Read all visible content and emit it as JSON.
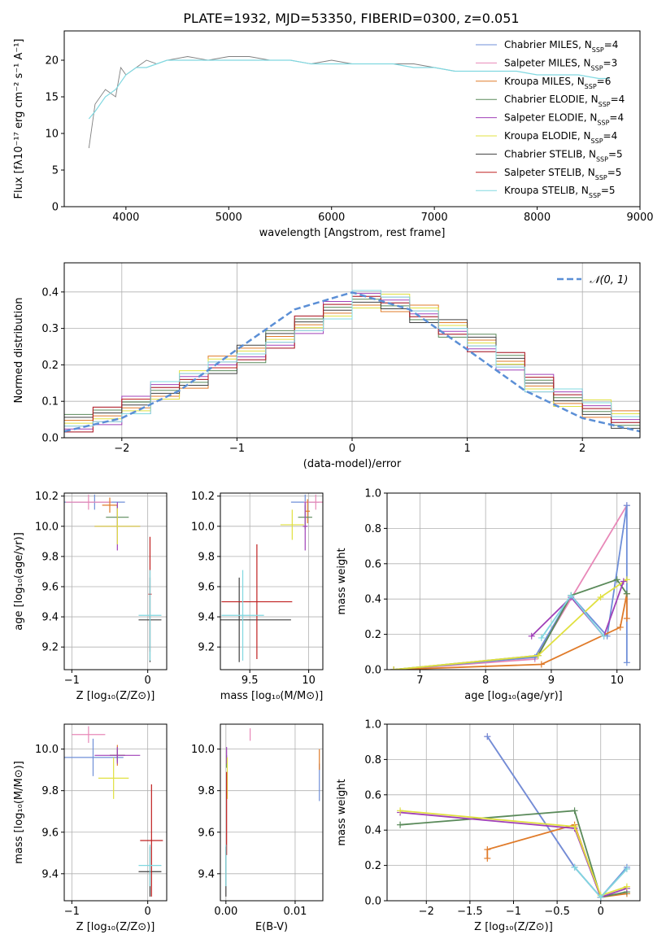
{
  "figure_title": "PLATE=1932, MJD=53350, FIBERID=0300, z=0.051",
  "models": [
    {
      "name": "Chabrier MILES",
      "nssp": 4,
      "color": "#6f8fd8"
    },
    {
      "name": "Salpeter MILES",
      "nssp": 3,
      "color": "#e888b8"
    },
    {
      "name": "Kroupa MILES",
      "nssp": 6,
      "color": "#e07b2a"
    },
    {
      "name": "Chabrier ELODIE",
      "nssp": 4,
      "color": "#5a8a5a"
    },
    {
      "name": "Salpeter ELODIE",
      "nssp": 4,
      "color": "#a040b8"
    },
    {
      "name": "Kroupa ELODIE",
      "nssp": 4,
      "color": "#e0e040"
    },
    {
      "name": "Chabrier STELIB",
      "nssp": 5,
      "color": "#404040"
    },
    {
      "name": "Salpeter STELIB",
      "nssp": 5,
      "color": "#c02020"
    },
    {
      "name": "Kroupa STELIB",
      "nssp": 5,
      "color": "#80d8e0"
    }
  ],
  "chart_data": [
    {
      "id": "spectrum",
      "type": "line",
      "xlabel": "wavelength [Angstrom, rest frame]",
      "ylabel": "Flux [fλ10⁻¹⁷ erg cm⁻² s⁻¹ A⁻¹]",
      "xlim": [
        3400,
        9000
      ],
      "ylim": [
        0,
        24
      ],
      "xticks": [
        4000,
        5000,
        6000,
        7000,
        8000,
        9000
      ],
      "yticks": [
        0,
        5,
        10,
        15,
        20
      ],
      "legend_position": "upper right",
      "grid": false,
      "series": [
        {
          "name": "data",
          "color": "#808080",
          "x": [
            3640,
            3700,
            3800,
            3900,
            3950,
            4000,
            4100,
            4200,
            4300,
            4400,
            4600,
            4800,
            5000,
            5200,
            5400,
            5600,
            5800,
            6000,
            6200,
            6400,
            6600,
            6800,
            7000,
            7200,
            7400
          ],
          "y": [
            8,
            14,
            16,
            15,
            19,
            18,
            19,
            20,
            19.5,
            20,
            20.5,
            20,
            20.5,
            20.5,
            20,
            20,
            19.5,
            20,
            19.5,
            19.5,
            19.5,
            19.5,
            19,
            18.5,
            18.5
          ]
        },
        {
          "name": "model",
          "color": "#80d8e0",
          "x": [
            3640,
            3700,
            3800,
            3900,
            4000,
            4100,
            4200,
            4300,
            4400,
            4600,
            4800,
            5000,
            5200,
            5400,
            5600,
            5800,
            6000,
            6200,
            6400,
            6600,
            6800,
            7000,
            7200,
            7400,
            7600,
            7800,
            8000,
            8200,
            8400,
            8600,
            8700
          ],
          "y": [
            12,
            13,
            15,
            16,
            18,
            19,
            19,
            19.5,
            20,
            20,
            20,
            20,
            20,
            20,
            20,
            19.5,
            19.5,
            19.5,
            19.5,
            19.5,
            19,
            19,
            18.5,
            18.5,
            18.5,
            18.5,
            18,
            18,
            18,
            17.5,
            17.5
          ]
        }
      ]
    },
    {
      "id": "residuals",
      "type": "line",
      "xlabel": "(data-model)/error",
      "ylabel": "Normed distribution",
      "xlim": [
        -2.5,
        2.5
      ],
      "ylim": [
        0,
        0.48
      ],
      "xticks": [
        -2,
        -1,
        0,
        1,
        2
      ],
      "yticks": [
        0.0,
        0.1,
        0.2,
        0.3,
        0.4
      ],
      "legend": "𝒩(0, 1)",
      "legend_position": "upper right",
      "grid": true,
      "series": [
        {
          "name": "𝒩(0, 1)",
          "color": "#5b8fd6",
          "style": "dashed",
          "x": [
            -2.5,
            -2.0,
            -1.5,
            -1.0,
            -0.5,
            0.0,
            0.5,
            1.0,
            1.5,
            2.0,
            2.5
          ],
          "y": [
            0.0175,
            0.054,
            0.1295,
            0.242,
            0.352,
            0.399,
            0.352,
            0.242,
            0.1295,
            0.054,
            0.0175
          ]
        },
        {
          "name": "histogram",
          "color": "#6f8fd8",
          "x": [
            -2.5,
            -2.25,
            -2.0,
            -1.75,
            -1.5,
            -1.25,
            -1.0,
            -0.75,
            -0.5,
            -0.25,
            0.0,
            0.25,
            0.5,
            0.75,
            1.0,
            1.25,
            1.5,
            1.75,
            2.0,
            2.25,
            2.5
          ],
          "y": [
            0.04,
            0.06,
            0.09,
            0.13,
            0.16,
            0.2,
            0.23,
            0.27,
            0.31,
            0.35,
            0.38,
            0.37,
            0.34,
            0.3,
            0.26,
            0.21,
            0.15,
            0.11,
            0.08,
            0.05,
            0.05
          ]
        }
      ]
    },
    {
      "id": "age-vs-Z",
      "type": "scatter",
      "xlabel": "Z [log₁₀(Z/Z⊙)]",
      "ylabel": "age  [log₁₀(age/yr)]",
      "xlim": [
        -1.1,
        0.25
      ],
      "ylim": [
        9.05,
        10.22
      ],
      "xticks": [
        -1,
        0
      ],
      "yticks": [
        9.2,
        9.4,
        9.6,
        9.8,
        10.0,
        10.2
      ],
      "grid": true,
      "points": [
        {
          "model": 0,
          "x": -0.7,
          "y": 10.16,
          "xerr": 0.4,
          "yerr": 0.05
        },
        {
          "model": 1,
          "x": -0.78,
          "y": 10.16,
          "xerr": 0.3,
          "yerr": 0.05
        },
        {
          "model": 2,
          "x": -0.5,
          "y": 10.14,
          "xerr": 0.1,
          "yerr": 0.05
        },
        {
          "model": 3,
          "x": -0.4,
          "y": 10.06,
          "xerr": 0.15,
          "yerr": 0.08
        },
        {
          "model": 4,
          "x": -0.4,
          "y": 10.0,
          "xerr": 0.3,
          "yerr": 0.16
        },
        {
          "model": 5,
          "x": -0.4,
          "y": 10.0,
          "xerr": 0.3,
          "yerr": 0.12
        },
        {
          "model": 6,
          "x": 0.03,
          "y": 9.38,
          "xerr": 0.15,
          "yerr": 0.28
        },
        {
          "model": 7,
          "x": 0.03,
          "y": 9.55,
          "xerr": 0.02,
          "yerr": 0.38
        },
        {
          "model": 8,
          "x": 0.03,
          "y": 9.41,
          "xerr": 0.15,
          "yerr": 0.3
        }
      ]
    },
    {
      "id": "age-vs-mass",
      "type": "scatter",
      "xlabel": "mass [log₁₀(M/M⊙)]",
      "ylabel": "",
      "xlim": [
        9.25,
        10.12
      ],
      "ylim": [
        9.05,
        10.22
      ],
      "xticks": [
        9.5,
        10.0
      ],
      "yticks": [
        9.2,
        9.4,
        9.6,
        9.8,
        10.0,
        10.2
      ],
      "grid": true,
      "points": [
        {
          "model": 0,
          "x": 9.97,
          "y": 10.16,
          "xerr": 0.12,
          "yerr": 0.05
        },
        {
          "model": 1,
          "x": 10.06,
          "y": 10.16,
          "xerr": 0.1,
          "yerr": 0.05
        },
        {
          "model": 2,
          "x": 9.99,
          "y": 10.1,
          "xerr": 0.02,
          "yerr": 0.08
        },
        {
          "model": 3,
          "x": 9.97,
          "y": 10.06,
          "xerr": 0.06,
          "yerr": 0.08
        },
        {
          "model": 4,
          "x": 9.97,
          "y": 10.0,
          "xerr": 0.02,
          "yerr": 0.16
        },
        {
          "model": 5,
          "x": 9.86,
          "y": 10.01,
          "xerr": 0.1,
          "yerr": 0.1
        },
        {
          "model": 6,
          "x": 9.41,
          "y": 9.38,
          "xerr": 0.44,
          "yerr": 0.28
        },
        {
          "model": 7,
          "x": 9.56,
          "y": 9.5,
          "xerr": 0.3,
          "yerr": 0.38
        },
        {
          "model": 8,
          "x": 9.44,
          "y": 9.41,
          "xerr": 0.18,
          "yerr": 0.3
        }
      ]
    },
    {
      "id": "weight-vs-age",
      "type": "line",
      "xlabel": "age  [log₁₀(age/yr)]",
      "ylabel": "mass weight",
      "xlim": [
        6.5,
        10.35
      ],
      "ylim": [
        0,
        1
      ],
      "xticks": [
        7,
        8,
        9,
        10
      ],
      "yticks": [
        0.0,
        0.2,
        0.4,
        0.6,
        0.8,
        1.0
      ],
      "grid": true,
      "series": [
        {
          "model": 1,
          "x": [
            6.6,
            8.75,
            10.15
          ],
          "y": [
            0.0,
            0.06,
            0.93
          ]
        },
        {
          "model": 0,
          "x": [
            6.6,
            8.75,
            9.3,
            9.85,
            10.15,
            10.15
          ],
          "y": [
            0.0,
            0.07,
            0.42,
            0.19,
            0.93,
            0.04
          ]
        },
        {
          "model": 2,
          "x": [
            6.6,
            8.85,
            10.05,
            10.15,
            10.15
          ],
          "y": [
            0.0,
            0.03,
            0.24,
            0.43,
            0.29
          ]
        },
        {
          "model": 3,
          "x": [
            6.6,
            8.8,
            9.3,
            10.0,
            10.15
          ],
          "y": [
            0.0,
            0.08,
            0.42,
            0.51,
            0.43
          ]
        },
        {
          "model": 5,
          "x": [
            6.6,
            8.8,
            9.75,
            10.15
          ],
          "y": [
            0.0,
            0.08,
            0.41,
            0.51
          ]
        },
        {
          "model": 4,
          "x": [
            8.7,
            9.3,
            9.8,
            10.1
          ],
          "y": [
            0.19,
            0.41,
            0.19,
            0.5
          ]
        },
        {
          "model": 8,
          "x": [
            8.85,
            9.3,
            9.8
          ],
          "y": [
            0.18,
            0.42,
            0.19
          ]
        }
      ]
    },
    {
      "id": "mass-vs-Z",
      "type": "scatter",
      "xlabel": "Z [log₁₀(Z/Z⊙)]",
      "ylabel": "mass [log₁₀(M/M⊙)]",
      "xlim": [
        -1.1,
        0.25
      ],
      "ylim": [
        9.27,
        10.12
      ],
      "xticks": [
        -1,
        0
      ],
      "yticks": [
        9.4,
        9.6,
        9.8,
        10.0
      ],
      "grid": true,
      "points": [
        {
          "model": 0,
          "x": -0.72,
          "y": 9.96,
          "xerr": 0.4,
          "yerr": 0.09
        },
        {
          "model": 1,
          "x": -0.78,
          "y": 10.07,
          "xerr": 0.22,
          "yerr": 0.04
        },
        {
          "model": 2,
          "x": -0.4,
          "y": 9.97,
          "xerr": 0.1,
          "yerr": 0.05
        },
        {
          "model": 3,
          "x": -0.4,
          "y": 9.97,
          "xerr": 0.1,
          "yerr": 0.03
        },
        {
          "model": 4,
          "x": -0.4,
          "y": 9.97,
          "xerr": 0.3,
          "yerr": 0.04
        },
        {
          "model": 5,
          "x": -0.45,
          "y": 9.86,
          "xerr": 0.2,
          "yerr": 0.1
        },
        {
          "model": 6,
          "x": 0.03,
          "y": 9.41,
          "xerr": 0.15,
          "yerr": 0.12
        },
        {
          "model": 7,
          "x": 0.05,
          "y": 9.56,
          "xerr": 0.15,
          "yerr": 0.27
        },
        {
          "model": 8,
          "x": 0.03,
          "y": 9.44,
          "xerr": 0.15,
          "yerr": 0.1
        }
      ]
    },
    {
      "id": "mass-vs-EBV",
      "type": "scatter",
      "xlabel": "E(B-V)",
      "ylabel": "",
      "xlim": [
        -0.0008,
        0.014
      ],
      "ylim": [
        9.27,
        10.12
      ],
      "xticks": [
        0.0,
        0.01
      ],
      "xticklabels": [
        "0.00",
        "0.01"
      ],
      "yticks": [
        9.4,
        9.6,
        9.8,
        10.0
      ],
      "grid": true,
      "points": [
        {
          "model": 0,
          "x": 0.0135,
          "y": 9.84,
          "xerr": 0,
          "yerr": 0.09
        },
        {
          "model": 1,
          "x": 0.0035,
          "y": 10.07,
          "xerr": 0,
          "yerr": 0.03
        },
        {
          "model": 2,
          "x": 0.0135,
          "y": 9.95,
          "xerr": 0,
          "yerr": 0.05
        },
        {
          "model": 3,
          "x": 0.0001,
          "y": 9.94,
          "xerr": 0,
          "yerr": 0.03
        },
        {
          "model": 4,
          "x": 0.0001,
          "y": 9.97,
          "xerr": 0,
          "yerr": 0.04
        },
        {
          "model": 5,
          "x": 0.0002,
          "y": 9.86,
          "xerr": 0,
          "yerr": 0.1
        },
        {
          "model": 6,
          "x": 0.0,
          "y": 9.41,
          "xerr": 0,
          "yerr": 0.12
        },
        {
          "model": 7,
          "x": 0.0001,
          "y": 9.69,
          "xerr": 0,
          "yerr": 0.2
        },
        {
          "model": 8,
          "x": 0.0,
          "y": 9.44,
          "xerr": 0,
          "yerr": 0.1
        }
      ]
    },
    {
      "id": "weight-vs-Z",
      "type": "line",
      "xlabel": "Z [log₁₀(Z/Z⊙)]",
      "ylabel": "mass weight",
      "xlim": [
        -2.45,
        0.45
      ],
      "ylim": [
        0,
        1
      ],
      "xticks": [
        -2.0,
        -1.5,
        -1.0,
        -0.5,
        0.0
      ],
      "yticks": [
        0.0,
        0.2,
        0.4,
        0.6,
        0.8,
        1.0
      ],
      "grid": true,
      "series": [
        {
          "model": 1,
          "x": [
            -1.3,
            -0.3,
            0.0,
            0.3
          ],
          "y": [
            0.93,
            0.19,
            0.02,
            0.18
          ]
        },
        {
          "model": 0,
          "x": [
            -1.3,
            -0.3,
            0.0,
            0.3
          ],
          "y": [
            0.93,
            0.19,
            0.02,
            0.19
          ]
        },
        {
          "model": 2,
          "x": [
            -1.3,
            -1.3,
            -0.3,
            0.0,
            0.3
          ],
          "y": [
            0.24,
            0.29,
            0.43,
            0.02,
            0.04
          ]
        },
        {
          "model": 3,
          "x": [
            -2.3,
            -0.3,
            0.0,
            0.3
          ],
          "y": [
            0.43,
            0.51,
            0.02,
            0.05
          ]
        },
        {
          "model": 4,
          "x": [
            -2.3,
            -0.3,
            0.0,
            0.3
          ],
          "y": [
            0.5,
            0.41,
            0.02,
            0.07
          ]
        },
        {
          "model": 5,
          "x": [
            -2.3,
            -0.3,
            0.0,
            0.3
          ],
          "y": [
            0.51,
            0.42,
            0.03,
            0.08
          ]
        },
        {
          "model": 8,
          "x": [
            -0.3,
            0.0,
            0.3
          ],
          "y": [
            0.19,
            0.02,
            0.18
          ]
        }
      ]
    }
  ]
}
